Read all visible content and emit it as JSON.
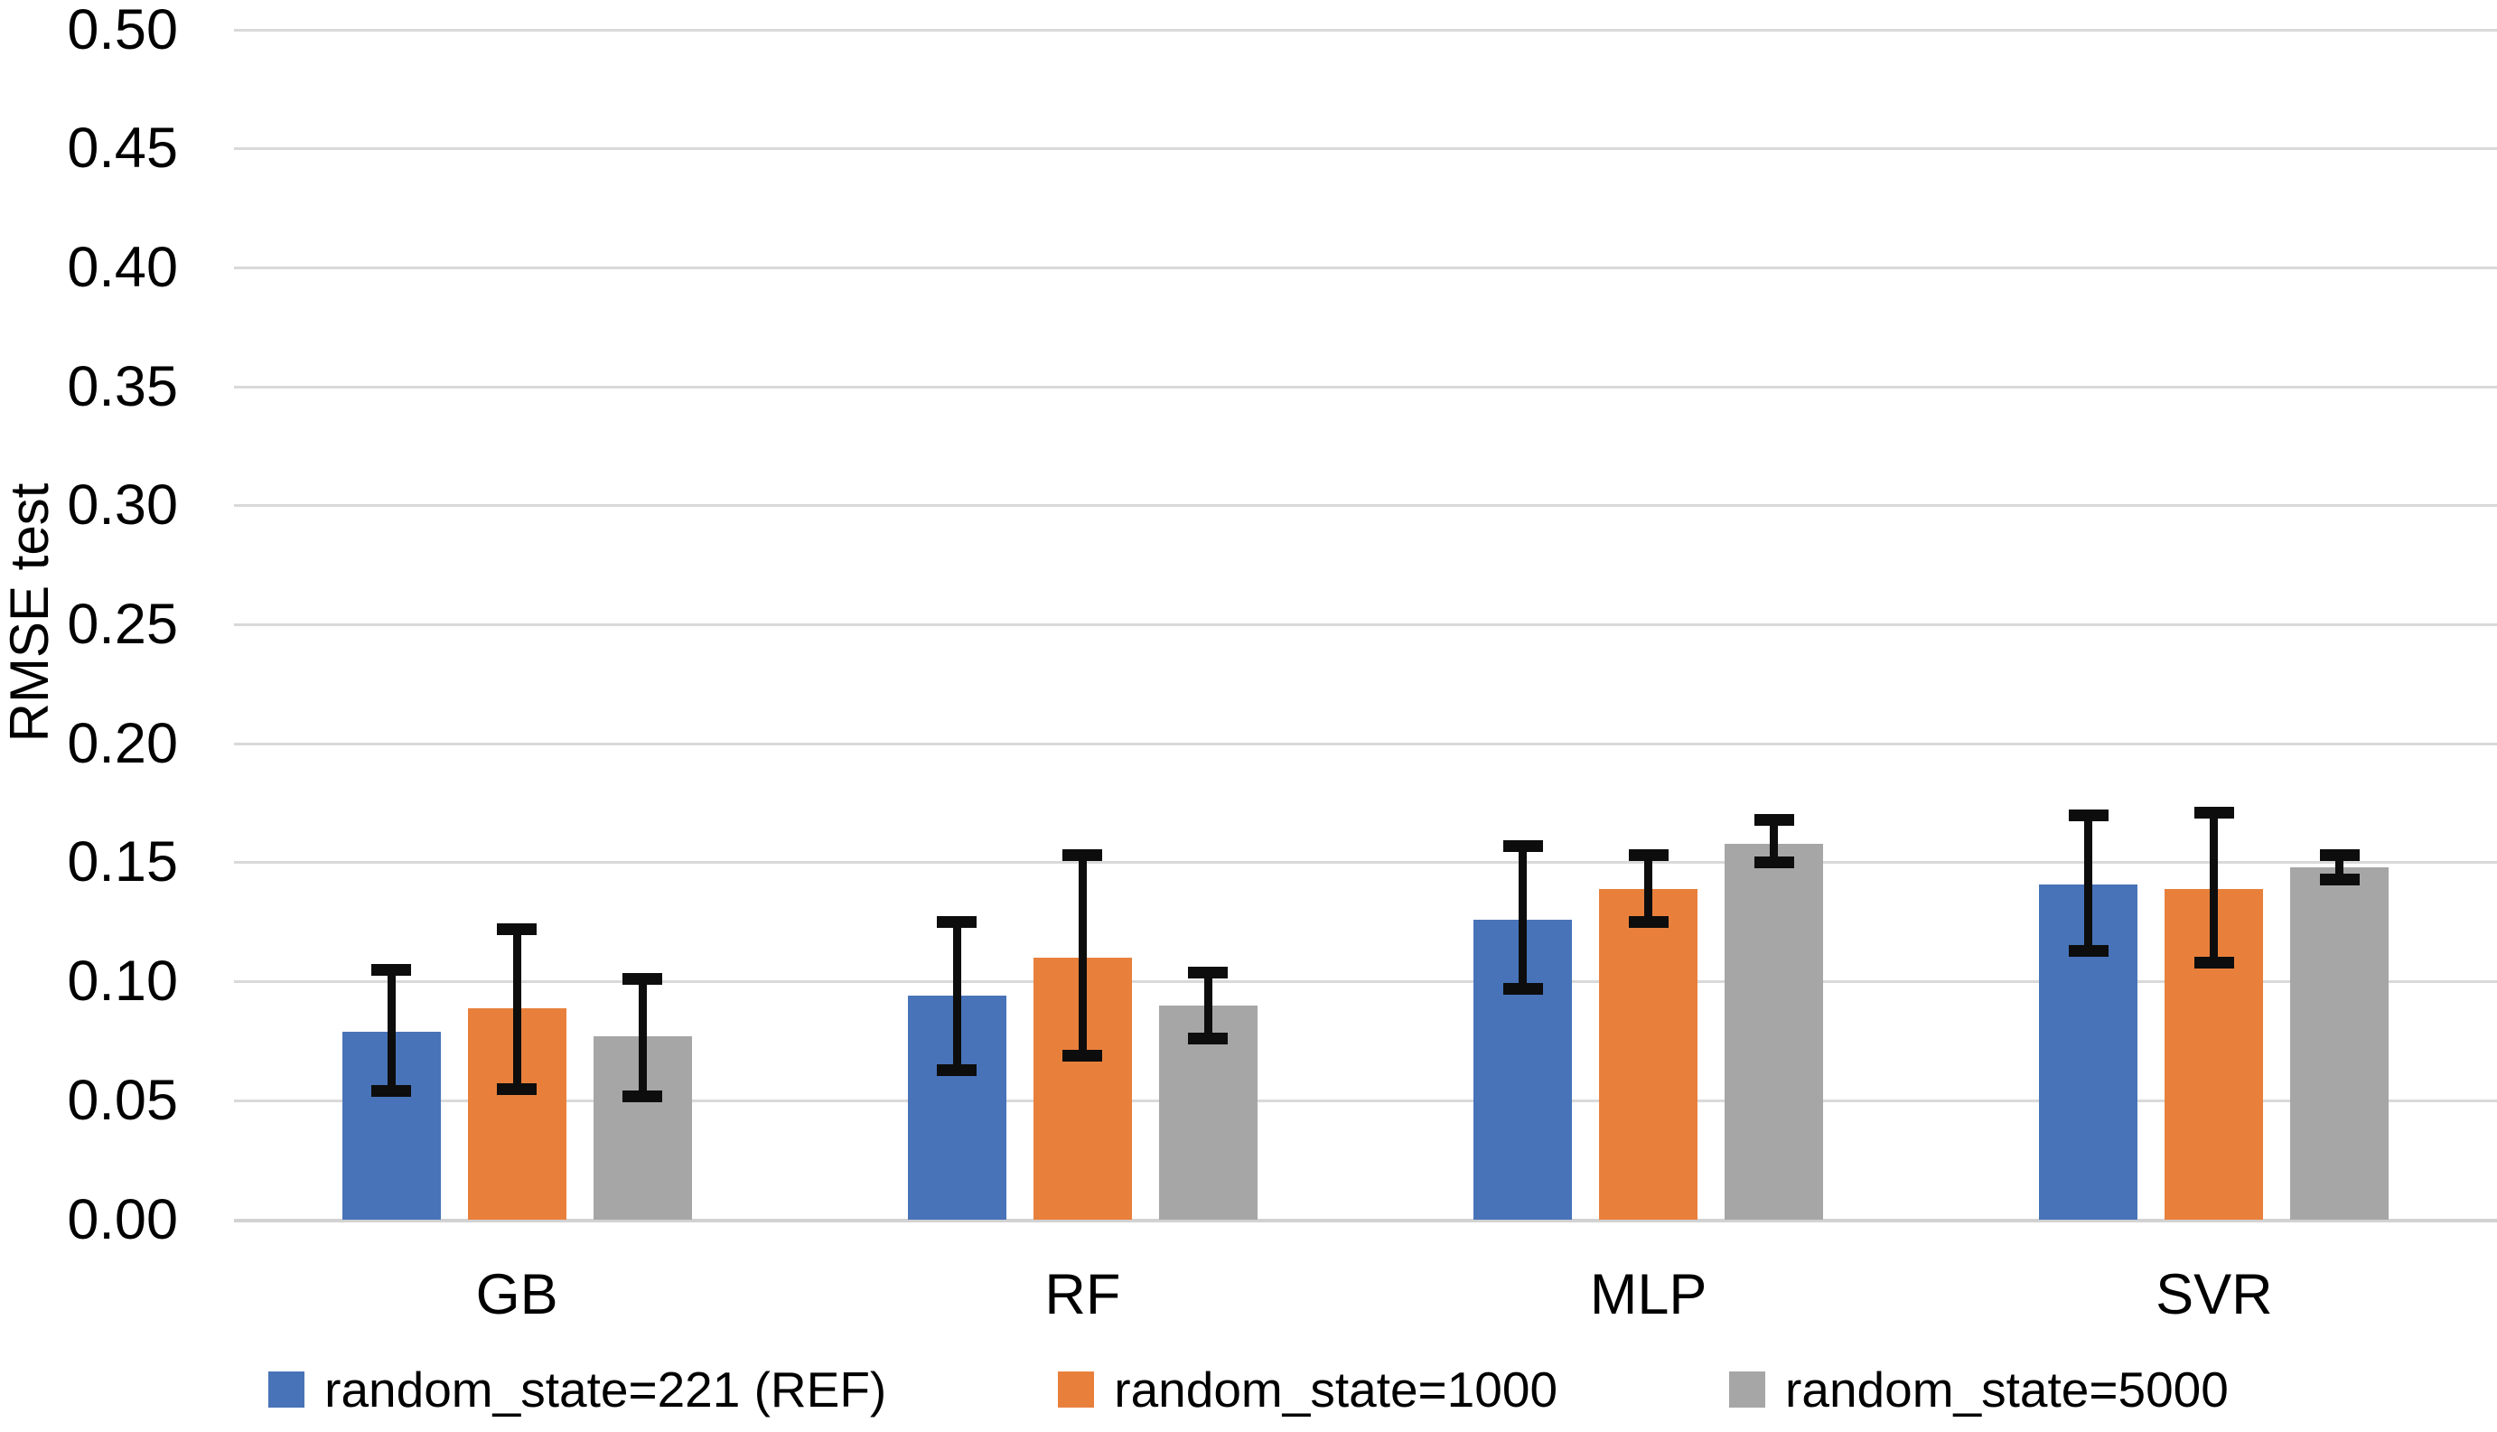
{
  "chart_data": {
    "type": "bar",
    "title": "",
    "xlabel": "",
    "ylabel": "RMSE test",
    "ylim": [
      0,
      0.5
    ],
    "ytick_step": 0.05,
    "ytick_labels": [
      "0.00",
      "0.05",
      "0.10",
      "0.15",
      "0.20",
      "0.25",
      "0.30",
      "0.35",
      "0.40",
      "0.45",
      "0.50"
    ],
    "categories": [
      "GB",
      "RF",
      "MLP",
      "SVR"
    ],
    "series": [
      {
        "name": "random_state=221 (REF)",
        "color": "#4873B8",
        "values": [
          0.079,
          0.094,
          0.126,
          0.141
        ],
        "error_low": [
          0.054,
          0.063,
          0.097,
          0.113
        ],
        "error_high": [
          0.105,
          0.125,
          0.157,
          0.17
        ]
      },
      {
        "name": "random_state=1000",
        "color": "#E8803C",
        "values": [
          0.089,
          0.11,
          0.139,
          0.139
        ],
        "error_low": [
          0.055,
          0.069,
          0.125,
          0.108
        ],
        "error_high": [
          0.122,
          0.153,
          0.153,
          0.171
        ]
      },
      {
        "name": "random_state=5000",
        "color": "#A6A6A6",
        "values": [
          0.077,
          0.09,
          0.158,
          0.148
        ],
        "error_low": [
          0.052,
          0.076,
          0.15,
          0.143
        ],
        "error_high": [
          0.101,
          0.104,
          0.168,
          0.153
        ]
      }
    ],
    "legend_position": "bottom",
    "grid": true,
    "grid_color": "#D9D9D9",
    "error_bar_color": "#0D0D0D"
  }
}
